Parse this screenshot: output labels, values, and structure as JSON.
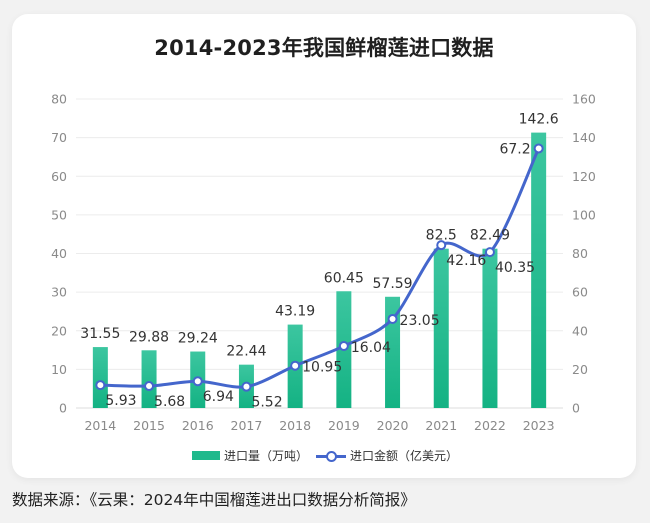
{
  "title": "2014-2023年我国鲜榴莲进口数据",
  "footer": "数据来源：《云果：2024年中国榴莲进出口数据分析简报》",
  "colors": {
    "bar_top": "#3cc6a0",
    "bar_bottom": "#14b283",
    "line": "#4466cc",
    "grid": "#ececec",
    "axis_text": "#8a8a8a",
    "label_text": "#333333"
  },
  "chart_data": {
    "type": "bar+line",
    "title": "2014-2023年我国鲜榴莲进口数据",
    "categories": [
      "2014",
      "2015",
      "2016",
      "2017",
      "2018",
      "2019",
      "2020",
      "2021",
      "2022",
      "2023"
    ],
    "series": [
      {
        "name": "进口量（万吨）",
        "type": "bar",
        "axis": "right",
        "values": [
          31.55,
          29.88,
          29.24,
          22.44,
          43.19,
          60.45,
          57.59,
          82.5,
          82.49,
          142.6
        ],
        "labels": [
          "31.55",
          "29.88",
          "29.24",
          "22.44",
          "43.19",
          "60.45",
          "57.59",
          "82.5",
          "82.49",
          "142.6"
        ]
      },
      {
        "name": "进口金额（亿美元）",
        "type": "line",
        "axis": "left",
        "values": [
          5.93,
          5.68,
          6.94,
          5.52,
          10.95,
          16.04,
          23.05,
          42.16,
          40.35,
          67.2
        ],
        "labels": [
          "5.93",
          "5.68",
          "6.94",
          "5.52",
          "10.95",
          "16.04",
          "23.05",
          "42.16",
          "40.35",
          "67.2"
        ]
      }
    ],
    "left_axis": {
      "ylim": [
        0,
        80
      ],
      "ticks": [
        "0",
        "10",
        "20",
        "30",
        "40",
        "50",
        "60",
        "70",
        "80"
      ]
    },
    "right_axis": {
      "ylim": [
        0,
        160
      ],
      "ticks": [
        "0",
        "20",
        "40",
        "60",
        "80",
        "100",
        "120",
        "140",
        "160"
      ]
    },
    "grid": true,
    "legend_position": "bottom-center"
  },
  "legend": {
    "bar_label": "进口量（万吨）",
    "line_label": "进口金额（亿美元）"
  }
}
